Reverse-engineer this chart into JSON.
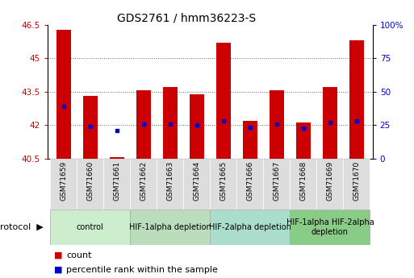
{
  "title": "GDS2761 / hmm36223-S",
  "samples": [
    "GSM71659",
    "GSM71660",
    "GSM71661",
    "GSM71662",
    "GSM71663",
    "GSM71664",
    "GSM71665",
    "GSM71666",
    "GSM71667",
    "GSM71668",
    "GSM71669",
    "GSM71670"
  ],
  "bar_tops": [
    46.3,
    43.3,
    40.56,
    43.55,
    43.7,
    43.4,
    45.7,
    42.2,
    43.55,
    42.1,
    43.7,
    45.8
  ],
  "bar_bottom": 40.5,
  "blue_dot_values": [
    42.85,
    41.95,
    41.75,
    42.05,
    42.05,
    42.0,
    42.2,
    41.9,
    42.05,
    41.88,
    42.1,
    42.2
  ],
  "ylim_left": [
    40.5,
    46.5
  ],
  "ylim_right": [
    0,
    100
  ],
  "yticks_left": [
    40.5,
    42.0,
    43.5,
    45.0,
    46.5
  ],
  "yticks_right": [
    0,
    25,
    50,
    75,
    100
  ],
  "ytick_labels_left": [
    "40.5",
    "42",
    "43.5",
    "45",
    "46.5"
  ],
  "ytick_labels_right": [
    "0",
    "25",
    "50",
    "75",
    "100%"
  ],
  "bar_color": "#cc0000",
  "dot_color": "#0000cc",
  "protocol_groups": [
    {
      "label": "control",
      "start": 0,
      "end": 2,
      "color": "#cceecc"
    },
    {
      "label": "HIF-1alpha depletion",
      "start": 3,
      "end": 5,
      "color": "#bbddbb"
    },
    {
      "label": "HIF-2alpha depletion",
      "start": 6,
      "end": 8,
      "color": "#aaddcc"
    },
    {
      "label": "HIF-1alpha HIF-2alpha\ndepletion",
      "start": 9,
      "end": 11,
      "color": "#88cc88"
    }
  ],
  "legend_labels": [
    "count",
    "percentile rank within the sample"
  ],
  "background_color": "#ffffff",
  "grid_color": "#666666",
  "xtick_bg_color": "#dddddd"
}
